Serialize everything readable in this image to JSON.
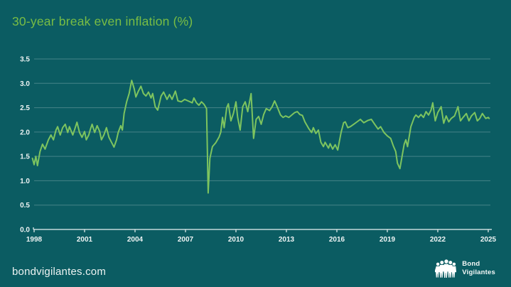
{
  "title": "30-year break even inflation (%)",
  "footer": {
    "url": "bondvigilantes.com"
  },
  "logo": {
    "line1": "Bond",
    "line2": "Vigilantes",
    "icon": "people-group-icon"
  },
  "colors": {
    "background": "#0b5c62",
    "title_green": "#79bd44",
    "line_green": "#7dc45f",
    "grid": "rgba(223,238,238,0.28)",
    "axis": "#e9f1f1",
    "tick_text": "#eef4f4"
  },
  "chart_data": {
    "type": "line",
    "title": "30-year break even inflation (%)",
    "xlabel": "",
    "ylabel": "",
    "grid": true,
    "legend": "none",
    "xlim": [
      1997.85,
      2025.3
    ],
    "ylim": [
      0,
      3.5
    ],
    "x_tick_labels": [
      "1998",
      "2001",
      "2004",
      "2007",
      "2010",
      "2013",
      "2016",
      "2019",
      "2022",
      "2025"
    ],
    "x_tick_values": [
      1998,
      2001,
      2004,
      2007,
      2010,
      2013,
      2016,
      2019,
      2022,
      2025
    ],
    "y_tick_labels": [
      "0.0",
      "0.5",
      "1.0",
      "1.5",
      "2.0",
      "2.5",
      "3.0",
      "3.5"
    ],
    "y_tick_values": [
      0,
      0.5,
      1,
      1.5,
      2,
      2.5,
      3,
      3.5
    ],
    "series": [
      {
        "name": "30-year break even inflation (%)",
        "color": "#7dc45f",
        "points": [
          [
            1997.9,
            1.46
          ],
          [
            1998.0,
            1.33
          ],
          [
            1998.1,
            1.5
          ],
          [
            1998.2,
            1.31
          ],
          [
            1998.35,
            1.6
          ],
          [
            1998.5,
            1.75
          ],
          [
            1998.65,
            1.65
          ],
          [
            1998.85,
            1.84
          ],
          [
            1999.0,
            1.94
          ],
          [
            1999.15,
            1.84
          ],
          [
            1999.3,
            2.04
          ],
          [
            1999.4,
            2.11
          ],
          [
            1999.55,
            1.94
          ],
          [
            1999.7,
            2.09
          ],
          [
            1999.85,
            2.16
          ],
          [
            2000.0,
            1.99
          ],
          [
            2000.1,
            2.11
          ],
          [
            2000.3,
            1.94
          ],
          [
            2000.4,
            2.04
          ],
          [
            2000.55,
            2.2
          ],
          [
            2000.7,
            1.99
          ],
          [
            2000.85,
            1.89
          ],
          [
            2001.0,
            2.01
          ],
          [
            2001.1,
            1.84
          ],
          [
            2001.25,
            1.94
          ],
          [
            2001.35,
            2.06
          ],
          [
            2001.45,
            2.16
          ],
          [
            2001.6,
            1.99
          ],
          [
            2001.75,
            2.13
          ],
          [
            2001.9,
            2.01
          ],
          [
            2002.0,
            1.84
          ],
          [
            2002.15,
            1.94
          ],
          [
            2002.3,
            2.09
          ],
          [
            2002.45,
            1.89
          ],
          [
            2002.6,
            1.79
          ],
          [
            2002.75,
            1.69
          ],
          [
            2002.9,
            1.84
          ],
          [
            2003.0,
            1.99
          ],
          [
            2003.15,
            2.13
          ],
          [
            2003.25,
            2.04
          ],
          [
            2003.35,
            2.38
          ],
          [
            2003.5,
            2.62
          ],
          [
            2003.65,
            2.79
          ],
          [
            2003.8,
            3.06
          ],
          [
            2003.95,
            2.89
          ],
          [
            2004.05,
            2.72
          ],
          [
            2004.2,
            2.84
          ],
          [
            2004.35,
            2.94
          ],
          [
            2004.5,
            2.79
          ],
          [
            2004.65,
            2.74
          ],
          [
            2004.8,
            2.82
          ],
          [
            2004.95,
            2.7
          ],
          [
            2005.05,
            2.79
          ],
          [
            2005.2,
            2.52
          ],
          [
            2005.35,
            2.45
          ],
          [
            2005.55,
            2.74
          ],
          [
            2005.7,
            2.82
          ],
          [
            2005.9,
            2.67
          ],
          [
            2006.05,
            2.77
          ],
          [
            2006.2,
            2.67
          ],
          [
            2006.4,
            2.84
          ],
          [
            2006.55,
            2.64
          ],
          [
            2006.75,
            2.62
          ],
          [
            2006.95,
            2.67
          ],
          [
            2007.15,
            2.64
          ],
          [
            2007.4,
            2.6
          ],
          [
            2007.5,
            2.7
          ],
          [
            2007.65,
            2.6
          ],
          [
            2007.8,
            2.55
          ],
          [
            2007.95,
            2.62
          ],
          [
            2008.1,
            2.57
          ],
          [
            2008.25,
            2.48
          ],
          [
            2008.3,
            1.6
          ],
          [
            2008.35,
            0.75
          ],
          [
            2008.45,
            1.46
          ],
          [
            2008.6,
            1.7
          ],
          [
            2008.8,
            1.78
          ],
          [
            2009.0,
            1.9
          ],
          [
            2009.1,
            2.0
          ],
          [
            2009.2,
            2.3
          ],
          [
            2009.3,
            2.09
          ],
          [
            2009.45,
            2.5
          ],
          [
            2009.55,
            2.58
          ],
          [
            2009.7,
            2.23
          ],
          [
            2009.85,
            2.38
          ],
          [
            2010.0,
            2.62
          ],
          [
            2010.1,
            2.3
          ],
          [
            2010.25,
            2.04
          ],
          [
            2010.4,
            2.52
          ],
          [
            2010.55,
            2.62
          ],
          [
            2010.7,
            2.42
          ],
          [
            2010.9,
            2.79
          ],
          [
            2011.05,
            1.87
          ],
          [
            2011.2,
            2.26
          ],
          [
            2011.35,
            2.32
          ],
          [
            2011.5,
            2.16
          ],
          [
            2011.65,
            2.36
          ],
          [
            2011.8,
            2.48
          ],
          [
            2012.0,
            2.44
          ],
          [
            2012.15,
            2.52
          ],
          [
            2012.3,
            2.64
          ],
          [
            2012.45,
            2.52
          ],
          [
            2012.65,
            2.35
          ],
          [
            2012.8,
            2.3
          ],
          [
            2012.95,
            2.33
          ],
          [
            2013.15,
            2.3
          ],
          [
            2013.35,
            2.36
          ],
          [
            2013.5,
            2.4
          ],
          [
            2013.65,
            2.42
          ],
          [
            2013.8,
            2.36
          ],
          [
            2013.95,
            2.34
          ],
          [
            2014.1,
            2.21
          ],
          [
            2014.35,
            2.06
          ],
          [
            2014.5,
            1.99
          ],
          [
            2014.6,
            2.09
          ],
          [
            2014.75,
            1.97
          ],
          [
            2014.9,
            2.04
          ],
          [
            2015.05,
            1.79
          ],
          [
            2015.2,
            1.7
          ],
          [
            2015.3,
            1.79
          ],
          [
            2015.5,
            1.67
          ],
          [
            2015.6,
            1.76
          ],
          [
            2015.75,
            1.65
          ],
          [
            2015.9,
            1.74
          ],
          [
            2016.05,
            1.63
          ],
          [
            2016.25,
            1.99
          ],
          [
            2016.4,
            2.19
          ],
          [
            2016.5,
            2.21
          ],
          [
            2016.65,
            2.09
          ],
          [
            2016.8,
            2.11
          ],
          [
            2017.0,
            2.16
          ],
          [
            2017.2,
            2.21
          ],
          [
            2017.4,
            2.26
          ],
          [
            2017.6,
            2.19
          ],
          [
            2017.85,
            2.24
          ],
          [
            2018.05,
            2.26
          ],
          [
            2018.25,
            2.16
          ],
          [
            2018.45,
            2.06
          ],
          [
            2018.6,
            2.11
          ],
          [
            2018.8,
            1.99
          ],
          [
            2019.0,
            1.92
          ],
          [
            2019.2,
            1.87
          ],
          [
            2019.35,
            1.72
          ],
          [
            2019.5,
            1.6
          ],
          [
            2019.6,
            1.36
          ],
          [
            2019.75,
            1.25
          ],
          [
            2019.9,
            1.55
          ],
          [
            2020.0,
            1.75
          ],
          [
            2020.1,
            1.84
          ],
          [
            2020.2,
            1.7
          ],
          [
            2020.4,
            2.11
          ],
          [
            2020.6,
            2.3
          ],
          [
            2020.7,
            2.35
          ],
          [
            2020.85,
            2.3
          ],
          [
            2021.0,
            2.36
          ],
          [
            2021.15,
            2.3
          ],
          [
            2021.3,
            2.42
          ],
          [
            2021.45,
            2.35
          ],
          [
            2021.6,
            2.45
          ],
          [
            2021.7,
            2.6
          ],
          [
            2021.85,
            2.23
          ],
          [
            2022.0,
            2.4
          ],
          [
            2022.2,
            2.52
          ],
          [
            2022.35,
            2.18
          ],
          [
            2022.5,
            2.33
          ],
          [
            2022.65,
            2.21
          ],
          [
            2022.8,
            2.28
          ],
          [
            2023.0,
            2.33
          ],
          [
            2023.2,
            2.52
          ],
          [
            2023.35,
            2.23
          ],
          [
            2023.5,
            2.3
          ],
          [
            2023.7,
            2.38
          ],
          [
            2023.85,
            2.23
          ],
          [
            2024.0,
            2.33
          ],
          [
            2024.2,
            2.4
          ],
          [
            2024.35,
            2.23
          ],
          [
            2024.5,
            2.28
          ],
          [
            2024.65,
            2.38
          ],
          [
            2024.85,
            2.28
          ],
          [
            2025.0,
            2.3
          ],
          [
            2025.05,
            2.28
          ]
        ]
      }
    ]
  }
}
